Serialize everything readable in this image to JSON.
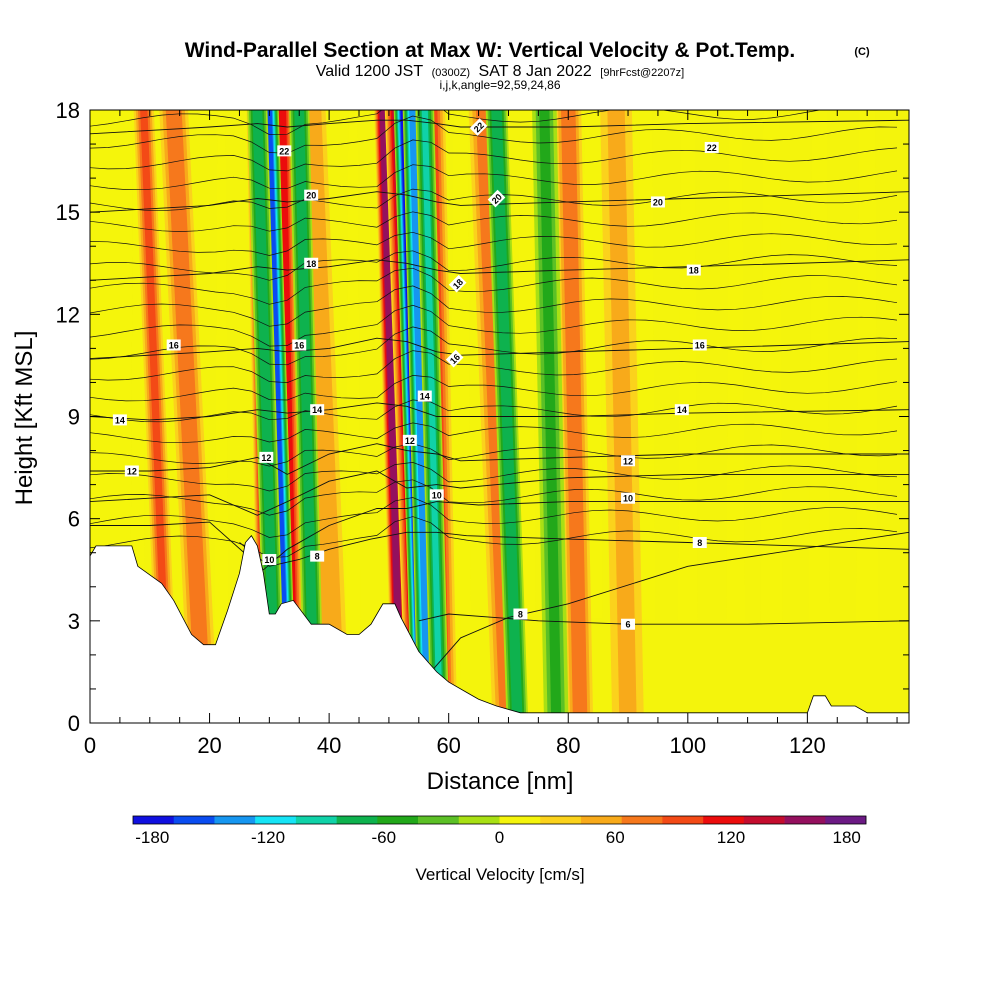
{
  "chart_data": {
    "type": "heatmap",
    "title": "Wind-Parallel Section at Max W: Vertical Velocity & Pot.Temp.",
    "title_mark": "(C)",
    "subtitle": {
      "valid": "Valid 1200 JST",
      "utc": "(0300Z)",
      "date": "SAT 8 Jan 2022",
      "forecast": "[9hrFcst@2207z]",
      "params": "i,j,k,angle=92,59,24,86"
    },
    "xlabel": "Distance [nm]",
    "ylabel": "Height [Kft MSL]",
    "xlim": [
      0,
      137
    ],
    "ylim": [
      0,
      18
    ],
    "xticks": [
      "0",
      "20",
      "40",
      "60",
      "80",
      "100",
      "120"
    ],
    "xtick_values": [
      0,
      20,
      40,
      60,
      80,
      100,
      120
    ],
    "yticks": [
      "0",
      "3",
      "6",
      "9",
      "12",
      "15",
      "18"
    ],
    "ytick_values": [
      0,
      3,
      6,
      9,
      12,
      15,
      18
    ],
    "colorbar": {
      "label": "Vertical Velocity [cm/s]",
      "range": [
        -190,
        190
      ],
      "step": 20,
      "tick_labels": [
        "-180",
        "-120",
        "-60",
        "0",
        "60",
        "120",
        "180"
      ],
      "tick_values": [
        -180,
        -120,
        -60,
        0,
        60,
        120,
        180
      ],
      "colors": [
        "#1010e0",
        "#0a4cf0",
        "#1696f0",
        "#16e4f6",
        "#10d2a8",
        "#0eb24e",
        "#22a81a",
        "#5cc026",
        "#a8e014",
        "#f4f40c",
        "#fbd21c",
        "#f8aa1a",
        "#f6781c",
        "#f34a16",
        "#ec0c0c",
        "#c40c2e",
        "#94105e",
        "#6c1a84"
      ]
    },
    "terrain_kft": [
      [
        0,
        4.9
      ],
      [
        1,
        5.2
      ],
      [
        7,
        5.2
      ],
      [
        8,
        4.6
      ],
      [
        12,
        4.1
      ],
      [
        14,
        3.6
      ],
      [
        17,
        2.6
      ],
      [
        19,
        2.3
      ],
      [
        21,
        2.3
      ],
      [
        22,
        2.8
      ],
      [
        23,
        3.3
      ],
      [
        25,
        4.4
      ],
      [
        26,
        5.3
      ],
      [
        27,
        5.5
      ],
      [
        28,
        5.2
      ],
      [
        29,
        4.4
      ],
      [
        30,
        3.2
      ],
      [
        31,
        3.2
      ],
      [
        32,
        3.5
      ],
      [
        34,
        3.6
      ],
      [
        37,
        2.9
      ],
      [
        40,
        2.9
      ],
      [
        43,
        2.6
      ],
      [
        45,
        2.6
      ],
      [
        47,
        2.9
      ],
      [
        49,
        3.5
      ],
      [
        51,
        3.5
      ],
      [
        52,
        3.1
      ],
      [
        55,
        2.1
      ],
      [
        58,
        1.5
      ],
      [
        60,
        1.2
      ],
      [
        63,
        0.9
      ],
      [
        65,
        0.7
      ],
      [
        68,
        0.5
      ],
      [
        72,
        0.3
      ],
      [
        80,
        0.3
      ],
      [
        120,
        0.3
      ],
      [
        121,
        0.8
      ],
      [
        123,
        0.8
      ],
      [
        124,
        0.5
      ],
      [
        128,
        0.5
      ],
      [
        130,
        0.3
      ],
      [
        137,
        0.3
      ]
    ],
    "updraft_bands": [
      {
        "x": [
          13,
          9
        ],
        "w": 1.2,
        "value": 75
      },
      {
        "x": [
          19,
          14
        ],
        "w": 1.8,
        "value": 60
      },
      {
        "x": [
          30,
          28
        ],
        "w": 1.3,
        "value": 140
      },
      {
        "x": [
          34,
          32
        ],
        "w": 1.4,
        "value": 110
      },
      {
        "x": [
          41,
          37
        ],
        "w": 1.8,
        "value": 45
      },
      {
        "x": [
          52,
          49
        ],
        "w": 1.0,
        "value": 150
      },
      {
        "x": [
          54.5,
          51
        ],
        "w": 1.2,
        "value": 115
      },
      {
        "x": [
          59,
          57
        ],
        "w": 1.8,
        "value": 85
      },
      {
        "x": [
          70,
          66
        ],
        "w": 2.0,
        "value": 70
      },
      {
        "x": [
          82,
          80
        ],
        "w": 1.6,
        "value": 65
      },
      {
        "x": [
          90,
          88
        ],
        "w": 2.0,
        "value": 35
      }
    ],
    "downdraft_bands": [
      {
        "x": [
          33,
          30
        ],
        "w": 1.1,
        "value": -155
      },
      {
        "x": [
          31,
          28
        ],
        "w": 1.2,
        "value": -90
      },
      {
        "x": [
          37.5,
          35
        ],
        "w": 1.2,
        "value": -85
      },
      {
        "x": [
          55.5,
          52.5
        ],
        "w": 1.2,
        "value": -190
      },
      {
        "x": [
          56.5,
          54
        ],
        "w": 1.2,
        "value": -150
      },
      {
        "x": [
          58.5,
          56
        ],
        "w": 1.1,
        "value": -95
      },
      {
        "x": [
          71.5,
          68
        ],
        "w": 1.3,
        "value": -80
      },
      {
        "x": [
          78,
          76
        ],
        "w": 1.5,
        "value": -55
      }
    ],
    "pot_temp_contours": [
      {
        "value": 8,
        "points": [
          [
            57,
            1.5
          ],
          [
            62,
            2.5
          ],
          [
            70,
            3.1
          ],
          [
            80,
            3.5
          ],
          [
            100,
            4.6
          ],
          [
            137,
            5.6
          ]
        ],
        "labels": [
          [
            72,
            3.2
          ]
        ]
      },
      {
        "value": 6,
        "points": [
          [
            55,
            3.0
          ],
          [
            60,
            3.2
          ],
          [
            75,
            3.0
          ],
          [
            90,
            2.9
          ],
          [
            110,
            2.9
          ],
          [
            137,
            3.0
          ]
        ],
        "labels": [
          [
            90,
            2.9
          ]
        ]
      },
      {
        "value": 8,
        "points": [
          [
            25,
            5.3
          ],
          [
            30,
            4.6
          ],
          [
            35,
            4.8
          ],
          [
            40,
            5.1
          ],
          [
            47,
            5.4
          ],
          [
            53,
            5.6
          ],
          [
            58,
            5.6
          ],
          [
            63,
            5.5
          ],
          [
            80,
            5.4
          ],
          [
            100,
            5.3
          ],
          [
            137,
            5.1
          ]
        ],
        "labels": [
          [
            38,
            4.9
          ],
          [
            102,
            5.3
          ]
        ]
      },
      {
        "value": 10,
        "points": [
          [
            0,
            5.8
          ],
          [
            10,
            5.8
          ],
          [
            20,
            5.9
          ],
          [
            29,
            4.5
          ],
          [
            33,
            5.1
          ],
          [
            40,
            5.8
          ],
          [
            48,
            6.3
          ],
          [
            53,
            6.3
          ],
          [
            58,
            6.5
          ],
          [
            65,
            6.4
          ],
          [
            80,
            6.5
          ],
          [
            100,
            6.5
          ],
          [
            137,
            6.5
          ]
        ],
        "labels": [
          [
            30,
            4.8
          ],
          [
            90,
            6.6
          ]
        ]
      },
      {
        "value": 10,
        "points": [
          [
            0,
            6.5
          ],
          [
            10,
            6.6
          ],
          [
            20,
            6.7
          ],
          [
            28,
            6.1
          ],
          [
            33,
            6.5
          ],
          [
            40,
            7.1
          ],
          [
            48,
            7.4
          ],
          [
            53,
            6.9
          ],
          [
            58,
            7.0
          ],
          [
            62,
            6.9
          ],
          [
            80,
            7.2
          ],
          [
            100,
            7.3
          ],
          [
            137,
            7.3
          ]
        ],
        "labels": [
          [
            58,
            6.7
          ]
        ]
      },
      {
        "value": 12,
        "points": [
          [
            0,
            7.4
          ],
          [
            10,
            7.4
          ],
          [
            20,
            7.5
          ],
          [
            28,
            7.8
          ],
          [
            33,
            7.3
          ],
          [
            40,
            7.9
          ],
          [
            48,
            8.2
          ],
          [
            53,
            8.0
          ],
          [
            58,
            7.9
          ],
          [
            62,
            7.7
          ],
          [
            80,
            7.8
          ],
          [
            100,
            7.9
          ],
          [
            137,
            7.9
          ]
        ],
        "labels": [
          [
            7,
            7.4
          ],
          [
            29.5,
            7.8
          ],
          [
            53.5,
            8.3
          ],
          [
            90,
            7.7
          ]
        ]
      },
      {
        "value": 14,
        "points": [
          [
            0,
            9.0
          ],
          [
            10,
            8.9
          ],
          [
            20,
            9.0
          ],
          [
            28,
            9.2
          ],
          [
            33,
            9.1
          ],
          [
            40,
            9.2
          ],
          [
            48,
            9.4
          ],
          [
            53,
            9.3
          ],
          [
            58,
            9.0
          ],
          [
            62,
            9.0
          ],
          [
            80,
            9.0
          ],
          [
            100,
            9.1
          ],
          [
            137,
            9.2
          ]
        ],
        "labels": [
          [
            5,
            8.9
          ],
          [
            38,
            9.2
          ],
          [
            56,
            9.6
          ],
          [
            99,
            9.2
          ]
        ]
      },
      {
        "value": 16,
        "points": [
          [
            0,
            10.7
          ],
          [
            10,
            10.8
          ],
          [
            20,
            10.9
          ],
          [
            28,
            11.0
          ],
          [
            33,
            10.9
          ],
          [
            40,
            11.0
          ],
          [
            48,
            11.3
          ],
          [
            53,
            11.2
          ],
          [
            58,
            10.9
          ],
          [
            62,
            10.8
          ],
          [
            80,
            10.9
          ],
          [
            100,
            11.0
          ],
          [
            137,
            11.2
          ]
        ],
        "labels": [
          [
            14,
            11.1
          ],
          [
            35,
            11.1
          ],
          [
            61,
            10.7
          ],
          [
            102,
            11.1
          ]
        ]
      },
      {
        "value": 18,
        "points": [
          [
            0,
            13.0
          ],
          [
            10,
            13.1
          ],
          [
            20,
            13.2
          ],
          [
            28,
            13.4
          ],
          [
            33,
            13.3
          ],
          [
            40,
            13.4
          ],
          [
            48,
            13.6
          ],
          [
            53,
            13.5
          ],
          [
            58,
            13.3
          ],
          [
            62,
            13.2
          ],
          [
            80,
            13.3
          ],
          [
            100,
            13.4
          ],
          [
            137,
            13.6
          ]
        ],
        "labels": [
          [
            37,
            13.5
          ],
          [
            61.5,
            12.9
          ],
          [
            101,
            13.3
          ]
        ]
      },
      {
        "value": 20,
        "points": [
          [
            0,
            15.0
          ],
          [
            10,
            15.1
          ],
          [
            20,
            15.2
          ],
          [
            28,
            15.4
          ],
          [
            33,
            15.3
          ],
          [
            40,
            15.4
          ],
          [
            48,
            15.6
          ],
          [
            53,
            15.5
          ],
          [
            58,
            15.3
          ],
          [
            62,
            15.2
          ],
          [
            80,
            15.3
          ],
          [
            100,
            15.4
          ],
          [
            137,
            15.6
          ]
        ],
        "labels": [
          [
            37,
            15.5
          ],
          [
            68,
            15.4
          ],
          [
            95,
            15.3
          ]
        ]
      },
      {
        "value": 22,
        "points": [
          [
            0,
            17.3
          ],
          [
            10,
            17.4
          ],
          [
            20,
            17.5
          ],
          [
            28,
            17.6
          ],
          [
            33,
            17.5
          ],
          [
            40,
            17.6
          ],
          [
            48,
            17.7
          ],
          [
            53,
            17.7
          ],
          [
            58,
            17.6
          ],
          [
            62,
            17.5
          ],
          [
            80,
            17.5
          ],
          [
            100,
            17.6
          ],
          [
            137,
            17.7
          ]
        ],
        "labels": [
          [
            32.5,
            16.8
          ],
          [
            65,
            17.5
          ],
          [
            104,
            16.9
          ]
        ]
      }
    ]
  }
}
